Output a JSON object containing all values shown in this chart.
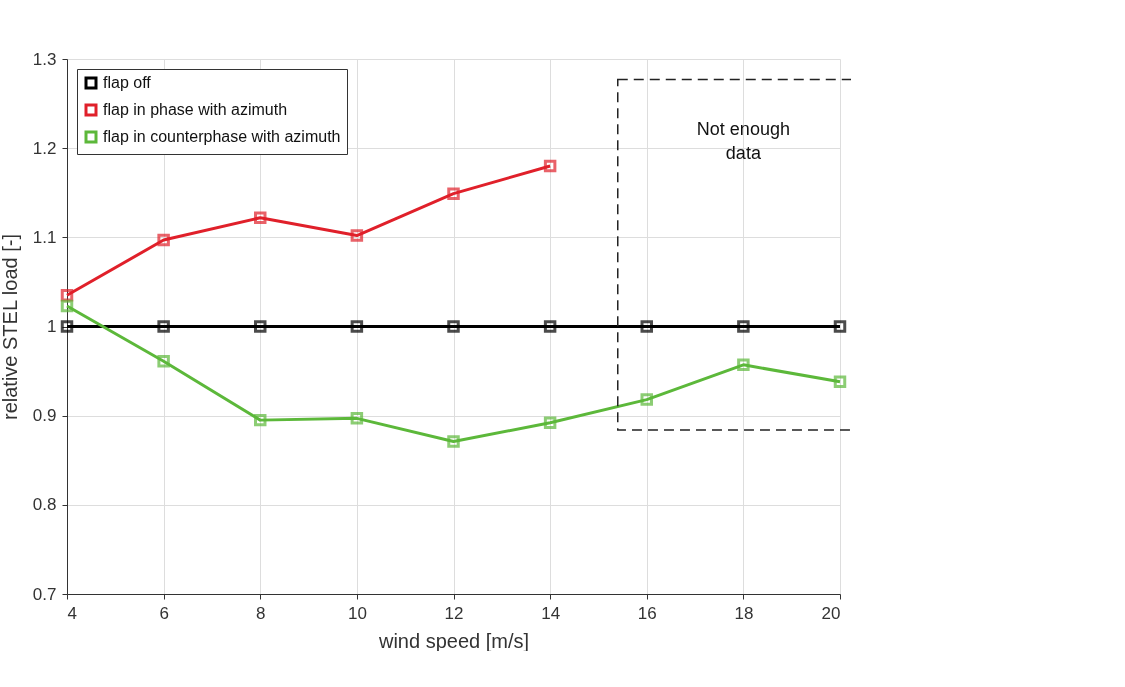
{
  "chart_data": {
    "type": "line",
    "xlabel": "wind speed [m/s]",
    "ylabel": "relative STEL load [-]",
    "x": [
      4,
      6,
      8,
      10,
      12,
      14,
      16,
      18,
      20
    ],
    "series": [
      {
        "name": "flap off",
        "color": "#000000",
        "values": [
          1,
          1,
          1,
          1,
          1,
          1,
          1,
          1,
          1
        ]
      },
      {
        "name": "flap in phase with azimuth",
        "color": "#e0202a",
        "values": [
          1.035,
          1.097,
          1.122,
          1.102,
          1.149,
          1.18,
          null,
          null,
          null
        ]
      },
      {
        "name": "flap in counterphase with azimuth",
        "color": "#5cb83a",
        "values": [
          1.023,
          0.961,
          0.895,
          0.897,
          0.871,
          0.892,
          0.918,
          0.957,
          0.938
        ]
      }
    ],
    "xlim": [
      4,
      20
    ],
    "xticks": [
      4,
      6,
      8,
      10,
      12,
      14,
      16,
      18,
      20
    ],
    "ylim": [
      0.7,
      1.3
    ],
    "yticks": [
      0.7,
      0.8,
      0.9,
      1,
      1.1,
      1.2,
      1.3
    ],
    "grid": true,
    "legend": "top left",
    "marker": "square",
    "line_style": "solid",
    "annotations": [
      "Not enough data"
    ]
  }
}
